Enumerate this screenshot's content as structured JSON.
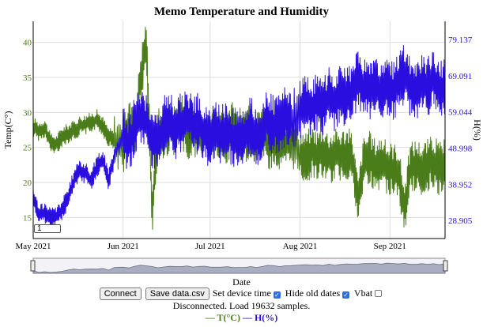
{
  "chart_data": {
    "type": "line",
    "title": "Memo Temperature and Humidity",
    "xlabel": "Date",
    "ylabel_left": "Temp(C°)",
    "ylabel_right": "H(%)",
    "x_range": [
      "2021-05-01",
      "2021-09-20"
    ],
    "x_ticks": [
      {
        "date": "2021-05-01",
        "label": "May 2021"
      },
      {
        "date": "2021-06-01",
        "label": "Jun 2021"
      },
      {
        "date": "2021-07-01",
        "label": "Jul 2021"
      },
      {
        "date": "2021-08-01",
        "label": "Aug 2021"
      },
      {
        "date": "2021-09-01",
        "label": "Sep 2021"
      }
    ],
    "y_left_range": [
      12,
      43
    ],
    "y_left_ticks": [
      15,
      20,
      25,
      30,
      35,
      40
    ],
    "y_right_range": [
      23.9,
      84.2
    ],
    "y_right_ticks": [
      28.905,
      38.952,
      48.998,
      59.044,
      69.091,
      79.137
    ],
    "y_right_tick_labels": [
      "28.905",
      "38.952",
      "48.998",
      "59.044",
      "69.091",
      "79.137"
    ],
    "grid": true,
    "series": [
      {
        "name": "T(°C)",
        "color": "#4a7d1a",
        "axis": "left",
        "points": [
          [
            "2021-05-01",
            28.0
          ],
          [
            "2021-05-03",
            27.3
          ],
          [
            "2021-05-05",
            27.8
          ],
          [
            "2021-05-07",
            25.6
          ],
          [
            "2021-05-09",
            25.4
          ],
          [
            "2021-05-11",
            26.6
          ],
          [
            "2021-05-13",
            27.0
          ],
          [
            "2021-05-15",
            27.4
          ],
          [
            "2021-05-17",
            28.1
          ],
          [
            "2021-05-19",
            28.3
          ],
          [
            "2021-05-21",
            28.6
          ],
          [
            "2021-05-23",
            29.0
          ],
          [
            "2021-05-25",
            28.0
          ],
          [
            "2021-05-27",
            26.5
          ],
          [
            "2021-05-29",
            26.0
          ],
          [
            "2021-06-01",
            25.0
          ],
          [
            "2021-06-03",
            28.5
          ],
          [
            "2021-06-05",
            26.0
          ],
          [
            "2021-06-07",
            35.0
          ],
          [
            "2021-06-09",
            40.0
          ],
          [
            "2021-06-11",
            16.0
          ],
          [
            "2021-06-13",
            27.0
          ],
          [
            "2021-06-15",
            26.5
          ],
          [
            "2021-06-17",
            28.0
          ],
          [
            "2021-06-19",
            27.5
          ],
          [
            "2021-06-21",
            29.0
          ],
          [
            "2021-06-23",
            27.0
          ],
          [
            "2021-06-25",
            27.5
          ],
          [
            "2021-06-27",
            26.8
          ],
          [
            "2021-06-29",
            27.5
          ],
          [
            "2021-07-01",
            26.5
          ],
          [
            "2021-07-03",
            27.0
          ],
          [
            "2021-07-05",
            26.2
          ],
          [
            "2021-07-07",
            25.8
          ],
          [
            "2021-07-09",
            28.5
          ],
          [
            "2021-07-11",
            27.0
          ],
          [
            "2021-07-13",
            26.5
          ],
          [
            "2021-07-15",
            27.5
          ],
          [
            "2021-07-17",
            26.0
          ],
          [
            "2021-07-19",
            27.8
          ],
          [
            "2021-07-21",
            25.5
          ],
          [
            "2021-07-23",
            26.0
          ],
          [
            "2021-07-25",
            25.0
          ],
          [
            "2021-07-27",
            25.5
          ],
          [
            "2021-07-29",
            26.0
          ],
          [
            "2021-08-01",
            24.0
          ],
          [
            "2021-08-03",
            23.5
          ],
          [
            "2021-08-05",
            24.5
          ],
          [
            "2021-08-07",
            23.8
          ],
          [
            "2021-08-09",
            24.5
          ],
          [
            "2021-08-11",
            23.5
          ],
          [
            "2021-08-13",
            24.0
          ],
          [
            "2021-08-15",
            23.8
          ],
          [
            "2021-08-17",
            24.2
          ],
          [
            "2021-08-19",
            23.5
          ],
          [
            "2021-08-21",
            17.0
          ],
          [
            "2021-08-23",
            23.0
          ],
          [
            "2021-08-25",
            23.5
          ],
          [
            "2021-08-27",
            22.5
          ],
          [
            "2021-08-29",
            23.0
          ],
          [
            "2021-08-31",
            22.0
          ],
          [
            "2021-09-02",
            22.0
          ],
          [
            "2021-09-04",
            21.5
          ],
          [
            "2021-09-06",
            16.0
          ],
          [
            "2021-09-08",
            22.0
          ],
          [
            "2021-09-10",
            22.5
          ],
          [
            "2021-09-12",
            22.0
          ],
          [
            "2021-09-14",
            22.5
          ],
          [
            "2021-09-16",
            23.0
          ],
          [
            "2021-09-18",
            22.0
          ],
          [
            "2021-09-20",
            22.5
          ]
        ]
      },
      {
        "name": "H(%)",
        "color": "#2a0ee0",
        "axis": "right",
        "points": [
          [
            "2021-05-01",
            35.0
          ],
          [
            "2021-05-03",
            30.5
          ],
          [
            "2021-05-05",
            31.0
          ],
          [
            "2021-05-07",
            29.5
          ],
          [
            "2021-05-09",
            30.0
          ],
          [
            "2021-05-11",
            32.0
          ],
          [
            "2021-05-13",
            35.0
          ],
          [
            "2021-05-15",
            40.0
          ],
          [
            "2021-05-17",
            43.0
          ],
          [
            "2021-05-19",
            42.0
          ],
          [
            "2021-05-21",
            40.0
          ],
          [
            "2021-05-23",
            44.0
          ],
          [
            "2021-05-25",
            46.0
          ],
          [
            "2021-05-27",
            40.0
          ],
          [
            "2021-05-29",
            47.0
          ],
          [
            "2021-06-01",
            52.0
          ],
          [
            "2021-06-03",
            50.0
          ],
          [
            "2021-06-05",
            55.0
          ],
          [
            "2021-06-07",
            58.0
          ],
          [
            "2021-06-09",
            56.0
          ],
          [
            "2021-06-11",
            52.0
          ],
          [
            "2021-06-13",
            50.0
          ],
          [
            "2021-06-15",
            55.0
          ],
          [
            "2021-06-17",
            57.0
          ],
          [
            "2021-06-19",
            54.0
          ],
          [
            "2021-06-21",
            56.0
          ],
          [
            "2021-06-23",
            58.0
          ],
          [
            "2021-06-25",
            55.0
          ],
          [
            "2021-06-27",
            56.0
          ],
          [
            "2021-06-29",
            53.0
          ],
          [
            "2021-07-01",
            52.0
          ],
          [
            "2021-07-03",
            54.0
          ],
          [
            "2021-07-05",
            53.0
          ],
          [
            "2021-07-07",
            55.0
          ],
          [
            "2021-07-09",
            51.0
          ],
          [
            "2021-07-11",
            52.0
          ],
          [
            "2021-07-13",
            53.0
          ],
          [
            "2021-07-15",
            55.0
          ],
          [
            "2021-07-17",
            52.0
          ],
          [
            "2021-07-19",
            54.0
          ],
          [
            "2021-07-21",
            57.0
          ],
          [
            "2021-07-23",
            55.0
          ],
          [
            "2021-07-25",
            56.0
          ],
          [
            "2021-07-27",
            58.0
          ],
          [
            "2021-07-29",
            56.0
          ],
          [
            "2021-08-01",
            60.0
          ],
          [
            "2021-08-03",
            61.0
          ],
          [
            "2021-08-05",
            60.0
          ],
          [
            "2021-08-07",
            62.0
          ],
          [
            "2021-08-09",
            61.0
          ],
          [
            "2021-08-11",
            63.0
          ],
          [
            "2021-08-13",
            62.0
          ],
          [
            "2021-08-15",
            64.0
          ],
          [
            "2021-08-17",
            63.0
          ],
          [
            "2021-08-19",
            65.0
          ],
          [
            "2021-08-21",
            68.0
          ],
          [
            "2021-08-23",
            66.0
          ],
          [
            "2021-08-25",
            65.0
          ],
          [
            "2021-08-27",
            67.0
          ],
          [
            "2021-08-29",
            64.0
          ],
          [
            "2021-08-31",
            66.0
          ],
          [
            "2021-09-02",
            65.0
          ],
          [
            "2021-09-04",
            67.0
          ],
          [
            "2021-09-06",
            70.0
          ],
          [
            "2021-09-08",
            66.0
          ],
          [
            "2021-09-10",
            65.0
          ],
          [
            "2021-09-12",
            67.0
          ],
          [
            "2021-09-14",
            66.0
          ],
          [
            "2021-09-16",
            68.0
          ],
          [
            "2021-09-18",
            65.0
          ],
          [
            "2021-09-20",
            66.0
          ]
        ]
      }
    ]
  },
  "range_input_value": "1",
  "controls": {
    "connect_label": "Connect",
    "save_label": "Save data.csv",
    "set_time_label": "Set device time",
    "set_time_checked": true,
    "hide_old_label": "Hide old dates",
    "hide_old_checked": true,
    "vbat_label": "Vbat",
    "vbat_checked": false
  },
  "status_text": "Disconnected. Load 19632 samples.",
  "legend": [
    {
      "dash": "—",
      "label": "T(°C)",
      "color": "#4a7d1a"
    },
    {
      "dash": "—",
      "label": "H(%)",
      "color": "#2a0ee0"
    }
  ]
}
